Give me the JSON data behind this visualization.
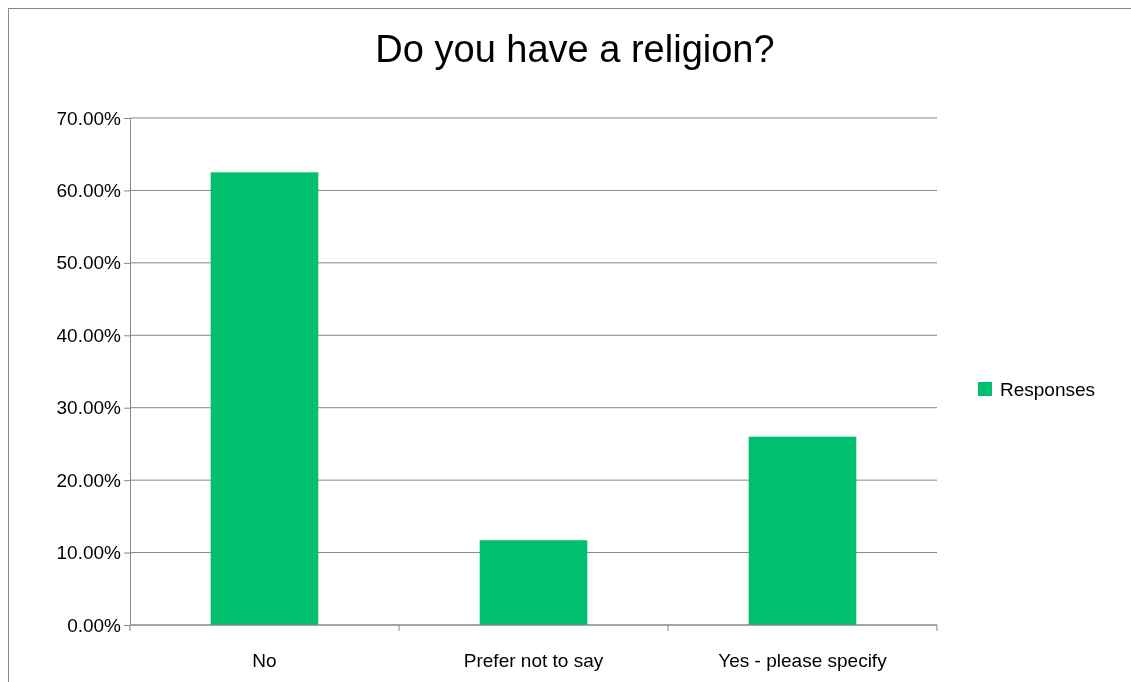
{
  "chart_data": {
    "type": "bar",
    "title": "Do you have a religion?",
    "categories": [
      "No",
      "Prefer not to say",
      "Yes - please specify"
    ],
    "series": [
      {
        "name": "Responses",
        "color": "#00bf6f",
        "values": [
          62.5,
          11.7,
          26.0
        ]
      }
    ],
    "ylim": [
      0,
      70
    ],
    "yticks": [
      {
        "value": 0,
        "label": "0.00%"
      },
      {
        "value": 10,
        "label": "10.00%"
      },
      {
        "value": 20,
        "label": "20.00%"
      },
      {
        "value": 30,
        "label": "30.00%"
      },
      {
        "value": 40,
        "label": "40.00%"
      },
      {
        "value": 50,
        "label": "50.00%"
      },
      {
        "value": 60,
        "label": "60.00%"
      },
      {
        "value": 70,
        "label": "70.00%"
      }
    ],
    "grid": "y",
    "legend": "right"
  }
}
